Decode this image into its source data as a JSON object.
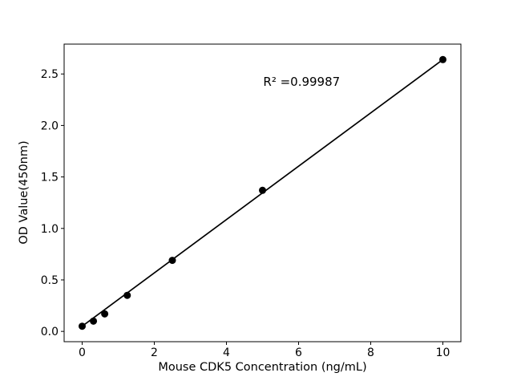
{
  "chart_data": {
    "type": "scatter",
    "title": "",
    "xlabel": "Mouse CDK5 Concentration (ng/mL)",
    "ylabel": "OD Value(450nm)",
    "x": [
      0,
      0.3125,
      0.625,
      1.25,
      2.5,
      5,
      10
    ],
    "y": [
      0.05,
      0.1,
      0.17,
      0.35,
      0.69,
      1.37,
      2.64
    ],
    "fit_line": {
      "x": [
        0,
        10
      ],
      "y": [
        0.05,
        2.64
      ]
    },
    "xticks": [
      0,
      2,
      4,
      6,
      8,
      10
    ],
    "xtick_labels": [
      "0",
      "2",
      "4",
      "6",
      "8",
      "10"
    ],
    "yticks": [
      0,
      0.5,
      1,
      1.5,
      2,
      2.5
    ],
    "ytick_labels": [
      "0.0",
      "0.5",
      "1.0",
      "1.5",
      "2.0",
      "2.5"
    ],
    "xlim": [
      -0.5,
      10.5
    ],
    "ylim": [
      -0.1,
      2.79
    ],
    "grid": false,
    "legend": null,
    "annotation": {
      "text": "R² =0.99987",
      "x": 5.02,
      "y": 2.39
    },
    "marker_color": "#000000",
    "line_color": "#000000",
    "axis_color": "#000000",
    "background_color": "#ffffff"
  }
}
